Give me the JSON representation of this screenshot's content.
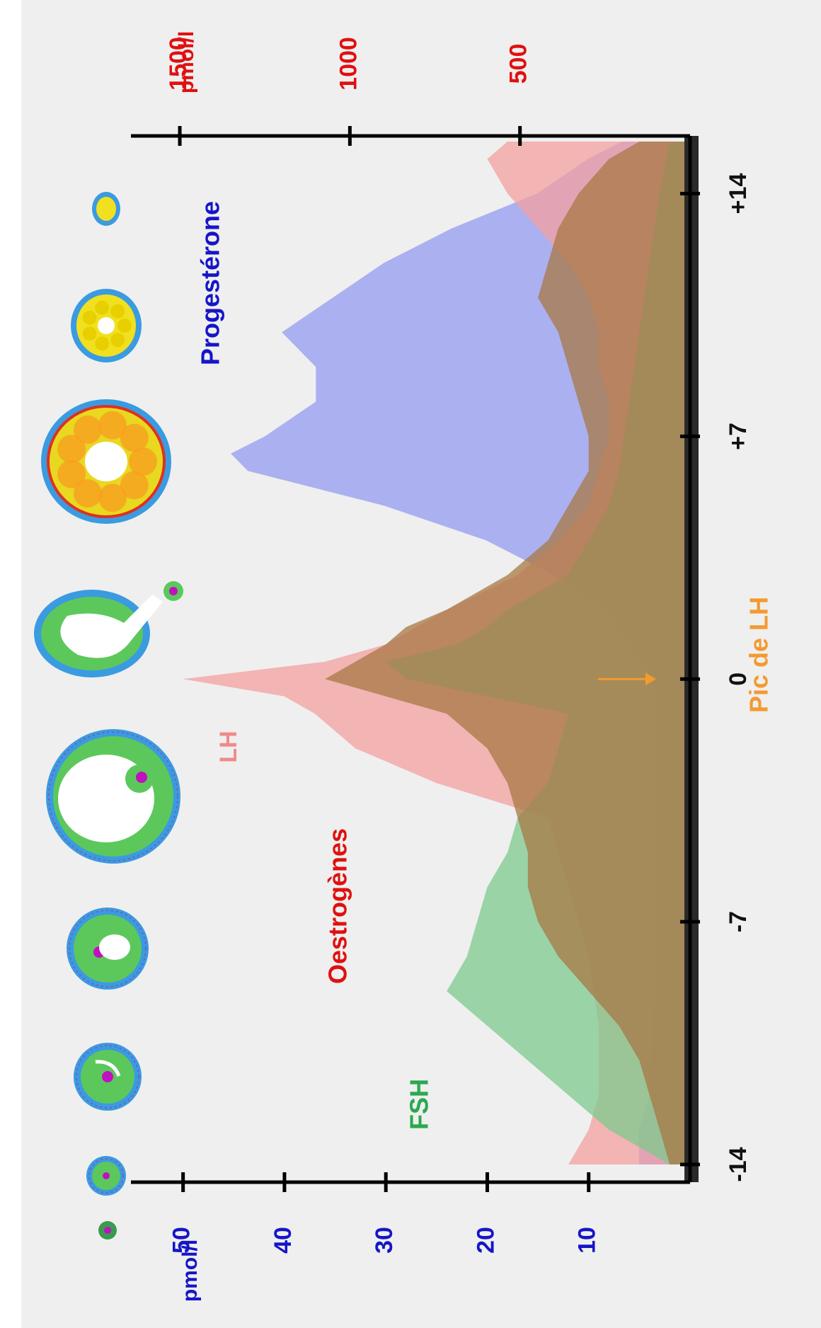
{
  "chart_data": {
    "type": "area",
    "orientation": "rotated-90-clockwise",
    "x": {
      "label": "Pic de LH",
      "range": [
        -14,
        15.5
      ],
      "ticks": [
        -14,
        -7,
        0,
        7,
        14
      ],
      "tick_labels": [
        "-14",
        "-7",
        "0",
        "+7",
        "+14"
      ]
    },
    "y_left": {
      "unit": "pmol/l",
      "range": [
        0,
        52
      ],
      "ticks": [
        10,
        20,
        30,
        40,
        50
      ],
      "tick_labels": [
        "10",
        "20",
        "30",
        "40",
        "50"
      ]
    },
    "y_right": {
      "unit": "pmol/l",
      "range": [
        0,
        1550
      ],
      "ticks": [
        500,
        1000,
        1500
      ],
      "tick_labels": [
        "500",
        "1000",
        "1500"
      ]
    },
    "series": [
      {
        "name": "Progestérone",
        "axis": "right",
        "color": "#9fa4f0",
        "x": [
          -14,
          -13,
          -12,
          -10,
          -8,
          -6,
          -4,
          -2,
          -1,
          0,
          1,
          2,
          3,
          4,
          5,
          6,
          6.5,
          7,
          8,
          9,
          10,
          11,
          12,
          13,
          14,
          15,
          15.5
        ],
        "values": [
          150,
          150,
          120,
          110,
          100,
          100,
          100,
          100,
          100,
          110,
          180,
          250,
          400,
          600,
          900,
          1300,
          1350,
          1250,
          1100,
          1100,
          1200,
          1050,
          900,
          700,
          450,
          300,
          200
        ]
      },
      {
        "name": "LH",
        "axis": "left",
        "color": "#f4a0a0",
        "x": [
          -14,
          -13,
          -12,
          -10,
          -8,
          -6,
          -5,
          -4,
          -3,
          -2,
          -1,
          -0.5,
          0,
          0.5,
          1,
          2,
          3,
          4,
          5,
          6,
          7,
          8,
          9,
          10,
          11,
          12,
          13,
          14,
          15,
          15.5
        ],
        "values": [
          12,
          10,
          9,
          9,
          10,
          12,
          13,
          14,
          25,
          33,
          37,
          40,
          50,
          36,
          30,
          24,
          17,
          13,
          10,
          9,
          8,
          8,
          9,
          9,
          10,
          12,
          15,
          18,
          20,
          18
        ]
      },
      {
        "name": "FSH",
        "axis": "left",
        "color": "#7dc98e",
        "x": [
          -14,
          -13,
          -12,
          -11,
          -10,
          -9,
          -8,
          -7,
          -6,
          -5,
          -4,
          -3,
          -2,
          -1,
          0,
          0.5,
          1,
          1.5,
          2,
          3,
          4,
          5,
          6,
          8,
          10,
          12,
          14,
          15.5
        ],
        "values": [
          2,
          8,
          12,
          16,
          20,
          24,
          22,
          21,
          20,
          18,
          17,
          14,
          13,
          12,
          28,
          30,
          23,
          20,
          18,
          12,
          10,
          8,
          7,
          6,
          5,
          4,
          3,
          2
        ]
      },
      {
        "name": "Oestrogènes",
        "axis": "left",
        "color": "#a87844",
        "x": [
          -14,
          -13,
          -12,
          -11,
          -10,
          -9,
          -8,
          -7,
          -6,
          -5,
          -4,
          -3,
          -2,
          -1,
          -0.5,
          0,
          0.5,
          1,
          1.5,
          2,
          3,
          4,
          5,
          6,
          7,
          8,
          9,
          10,
          11,
          12,
          13,
          14,
          15,
          15.5
        ],
        "values": [
          2,
          3,
          4,
          5,
          7,
          10,
          13,
          15,
          16,
          16,
          17,
          18,
          20,
          24,
          30,
          36,
          33,
          30,
          28,
          24,
          18,
          14,
          12,
          10,
          10,
          11,
          12,
          13,
          15,
          14,
          13,
          11,
          8,
          5
        ]
      }
    ],
    "labels": {
      "progesterone": "Progestérone",
      "lh": "LH",
      "oestrogenes": "Oestrogènes",
      "fsh": "FSH",
      "lh_peak": "Pic de LH"
    }
  }
}
